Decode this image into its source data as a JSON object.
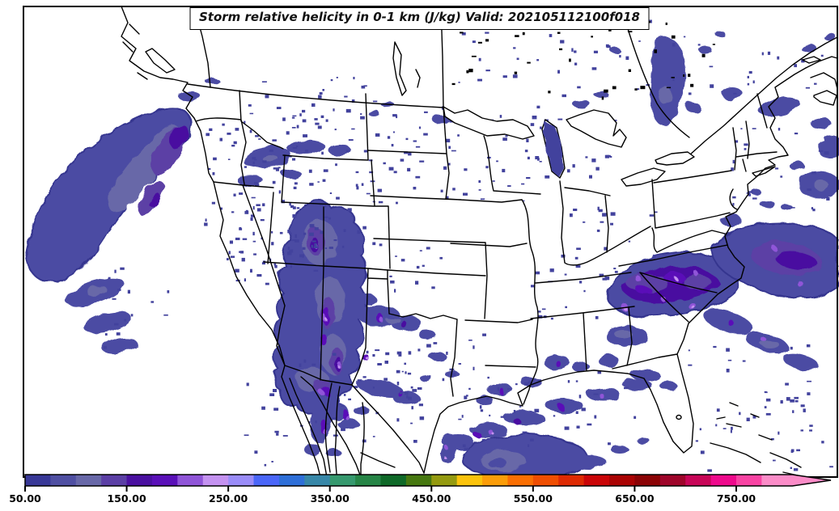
{
  "title": "Storm relative helicity in 0-1 km (J/kg) Valid: 202105112100f018",
  "colorbar": {
    "min_value": 50,
    "interval": 25,
    "ticks": [
      {
        "value": 50,
        "label": "50.00"
      },
      {
        "value": 150,
        "label": "150.00"
      },
      {
        "value": 250,
        "label": "250.00"
      },
      {
        "value": 350,
        "label": "350.00"
      },
      {
        "value": 450,
        "label": "450.00"
      },
      {
        "value": 550,
        "label": "550.00"
      },
      {
        "value": 650,
        "label": "650.00"
      },
      {
        "value": 750,
        "label": "750.00"
      }
    ],
    "colors": [
      "#383897",
      "#4f4fa2",
      "#6868a8",
      "#5b3fa5",
      "#4a10a0",
      "#5a10b8",
      "#9055d8",
      "#c492f0",
      "#9a8cf8",
      "#4a66f8",
      "#2e6fd8",
      "#3787a8",
      "#36996e",
      "#268546",
      "#0f6928",
      "#467810",
      "#949a10",
      "#fbc30c",
      "#fb9d09",
      "#fa6f03",
      "#ef4e02",
      "#de2a03",
      "#ca0507",
      "#aa0303",
      "#8b0305",
      "#9e052a",
      "#c70557",
      "#ee0a8c",
      "#f843a3",
      "#fb8cc8"
    ]
  },
  "map": {
    "background": "#ffffff",
    "boundary_color": "#000000",
    "field_fill_primary": "#4c4ca3",
    "field_fill_outline": "#35358f",
    "speckle_color": "#42429d"
  }
}
